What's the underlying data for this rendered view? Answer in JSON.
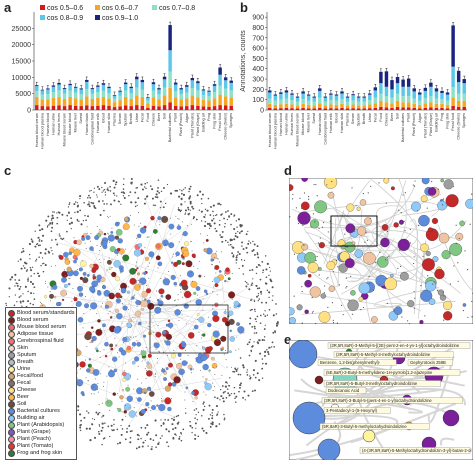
{
  "panels": {
    "a": {
      "letter": "a",
      "chart_data": {
        "type": "bar",
        "stacked": true,
        "yticks": [
          0,
          5000,
          10000,
          15000,
          20000,
          25000
        ],
        "ylim": [
          0,
          30000
        ],
        "legend": [
          "cos 0.5–0.6",
          "cos 0.6–0.7",
          "cos 0.7–0.8",
          "cos 0.8–0.9",
          "cos 0.9–1.0"
        ],
        "legend_colors": [
          "#d7191c",
          "#f5a623",
          "#8fe0c8",
          "#5bc8e8",
          "#1a237e"
        ],
        "categories": [
          "Human blood serum",
          "Human blood plasma",
          "Human blood",
          "Human urine",
          "Human feces",
          "Mouse blood serum",
          "Mouse blood",
          "Mouse liver",
          "Sweat",
          "Human brain",
          "Cerebrospinal fluid",
          "Human milk",
          "Blood",
          "Human skin",
          "Plasma",
          "Serum",
          "Sputum",
          "Breath",
          "Urine",
          "Fecal",
          "Food",
          "Cheese",
          "Beer",
          "Soil",
          "Bacterial cultures",
          "Plant",
          "Plant (Peach)",
          "Algae",
          "Plant (Tomato)",
          "Plant (Grape)",
          "Building air",
          "Frog",
          "Frog skin",
          "Fecal food",
          "Cheese (Swiss)",
          "Sponges"
        ],
        "series": [
          {
            "values": [
              1500,
              1200,
              1100,
              1300,
              1400,
              1200,
              1500,
              1300,
              1200,
              1400,
              1200,
              1300,
              1500,
              1300,
              900,
              1100,
              1400,
              1200,
              1500,
              1300,
              700,
              1300,
              1100,
              1500,
              2300,
              1300,
              1100,
              1200,
              1500,
              1300,
              1100,
              1000,
              1200,
              1500,
              1400,
              1300
            ]
          },
          {
            "values": [
              2500,
              2000,
              2200,
              2400,
              2600,
              2200,
              2500,
              2300,
              2100,
              2800,
              2200,
              2400,
              2500,
              2200,
              1500,
              1900,
              2600,
              2200,
              3000,
              2700,
              1300,
              2600,
              2100,
              3000,
              4500,
              2500,
              2100,
              2300,
              2900,
              2600,
              2000,
              1900,
              2400,
              3200,
              2800,
              2600
            ]
          },
          {
            "values": [
              1800,
              1500,
              1600,
              1800,
              2000,
              1600,
              1900,
              1700,
              1600,
              2200,
              1600,
              1800,
              1900,
              1700,
              1100,
              1400,
              2000,
              1700,
              2400,
              2200,
              900,
              2000,
              1600,
              2400,
              5000,
              2000,
              1600,
              1800,
              2300,
              2100,
              1500,
              1400,
              1900,
              2800,
              2300,
              2100
            ]
          },
          {
            "values": [
              1500,
              1300,
              1400,
              1600,
              1800,
              1400,
              1700,
              1500,
              1400,
              2200,
              1400,
              1600,
              1800,
              1500,
              900,
              1200,
              1900,
              1600,
              2500,
              2300,
              800,
              2000,
              1500,
              2500,
              6500,
              2000,
              1500,
              1800,
              2400,
              2200,
              1400,
              1300,
              1900,
              3300,
              2600,
              2300
            ]
          },
          {
            "values": [
              300,
              200,
              300,
              400,
              500,
              300,
              400,
              300,
              300,
              600,
              300,
              400,
              500,
              400,
              200,
              300,
              500,
              400,
              800,
              700,
              200,
              600,
              400,
              800,
              7700,
              600,
              400,
              500,
              700,
              600,
              300,
              300,
              500,
              2200,
              900,
              700
            ]
          }
        ]
      }
    },
    "b": {
      "letter": "b",
      "chart_data": {
        "type": "bar",
        "stacked": true,
        "ylabel": "Annotations, counts",
        "yticks": [
          0,
          100,
          200,
          300,
          400,
          500,
          600,
          700,
          800,
          900
        ],
        "ylim": [
          0,
          950
        ],
        "categories": [
          "Human blood serum",
          "Human blood plasma",
          "Human blood",
          "Human urine",
          "Human feces",
          "Mouse blood serum",
          "Mouse blood",
          "Mouse liver",
          "Sweat",
          "Human brain",
          "Cerebrospinal fluid",
          "Human milk",
          "Blood",
          "Human skin",
          "Plasma",
          "Serum",
          "Sputum",
          "Breath",
          "Urine",
          "Fecal",
          "Food",
          "Cheese",
          "Beer",
          "Soil",
          "Bacterial cultures",
          "Plant",
          "Plant (Peach)",
          "Algae",
          "Plant (Tomato)",
          "Plant (Grape)",
          "Building air",
          "Frog",
          "Frog skin",
          "Fecal food",
          "Cheese (Swiss)",
          "Sponges"
        ],
        "series": [
          {
            "values": [
              20,
              15,
              18,
              20,
              18,
              15,
              20,
              15,
              15,
              20,
              15,
              18,
              15,
              20,
              15,
              18,
              15,
              15,
              18,
              20,
              30,
              25,
              20,
              30,
              25,
              25,
              20,
              15,
              20,
              25,
              20,
              20,
              15,
              40,
              30,
              30
            ]
          },
          {
            "values": [
              40,
              35,
              38,
              40,
              36,
              30,
              40,
              35,
              30,
              45,
              30,
              36,
              35,
              40,
              30,
              35,
              30,
              30,
              36,
              45,
              60,
              50,
              45,
              60,
              50,
              50,
              40,
              35,
              45,
              50,
              40,
              40,
              35,
              80,
              60,
              60
            ]
          },
          {
            "values": [
              50,
              40,
              45,
              50,
              42,
              35,
              45,
              40,
              35,
              55,
              35,
              42,
              40,
              45,
              35,
              40,
              35,
              35,
              42,
              55,
              70,
              60,
              55,
              70,
              60,
              60,
              50,
              40,
              50,
              60,
              50,
              45,
              40,
              100,
              70,
              70
            ]
          },
          {
            "values": [
              60,
              50,
              55,
              60,
              52,
              40,
              55,
              50,
              40,
              65,
              40,
              52,
              50,
              55,
              40,
              50,
              40,
              40,
              52,
              70,
              100,
              90,
              80,
              100,
              90,
              90,
              70,
              60,
              70,
              90,
              70,
              60,
              60,
              200,
              110,
              100
            ]
          },
          {
            "values": [
              20,
              10,
              15,
              20,
              12,
              10,
              20,
              10,
              10,
              25,
              10,
              12,
              10,
              20,
              10,
              10,
              10,
              10,
              12,
              30,
              110,
              150,
              90,
              60,
              70,
              80,
              30,
              20,
              30,
              40,
              30,
              20,
              20,
              400,
              110,
              40
            ]
          }
        ]
      }
    },
    "c": {
      "letter": "c",
      "legend": [
        {
          "label": "Blood serum/standards",
          "color": "#c62828"
        },
        {
          "label": "Blood serum",
          "color": "#7b1f1f"
        },
        {
          "label": "Mouse blood serum",
          "color": "#e57373"
        },
        {
          "label": "Adipose tissue",
          "color": "#f0c4a0"
        },
        {
          "label": "Cerebrospinal fluid",
          "color": "#ff6b6b"
        },
        {
          "label": "Skin",
          "color": "#f4d6d6"
        },
        {
          "label": "Sputum",
          "color": "#9e9e9e"
        },
        {
          "label": "Breath",
          "color": "#b0bec5"
        },
        {
          "label": "Urine",
          "color": "#fff59d"
        },
        {
          "label": "Fecal/food",
          "color": "#d7a86e"
        },
        {
          "label": "Fecal",
          "color": "#8d6e63"
        },
        {
          "label": "Cheese",
          "color": "#ffe082"
        },
        {
          "label": "Beer",
          "color": "#ffb74d"
        },
        {
          "label": "Soil",
          "color": "#6d4c41"
        },
        {
          "label": "Bacterial cultures",
          "color": "#5e8cdc"
        },
        {
          "label": "Building air",
          "color": "#90caf9"
        },
        {
          "label": "Plant (Arabidopsis)",
          "color": "#81c784"
        },
        {
          "label": "Plant (Grape)",
          "color": "#7e57c2"
        },
        {
          "label": "Plant (Peach)",
          "color": "#f48fb1"
        },
        {
          "label": "Plant (Tomato)",
          "color": "#e53935"
        },
        {
          "label": "Frog and frog skin",
          "color": "#2e7d32"
        }
      ]
    },
    "d": {
      "letter": "d"
    },
    "e": {
      "letter": "e",
      "labels": [
        "(3R,5R,8aR)-3-Methyl-5-[(2E)-pent-2-en-4-yn-1-yl]octahydroindolizine",
        "(3R,5R,8aR)-5-Methyl-3-methyloctahydroindolizine",
        "Benzene, 1,2-bis(phenylmethyl)-",
        "Gephyrotoxin 259B",
        "(5E,8aR)-3-Butyl-5-methylidene-1H-pyrrolo[1,2-a]azepine",
        "(3R,5R,8aR)-5-Butyl-3-methyloctahydroindolizine",
        "Dodecanoic Acid",
        "(3R,5R,8aR)-3-Butyl-5-(pent-4-en-1-yl)octahydroindolizine",
        "3-Pentadecyl-1-(5-Hexynyl)",
        "(5R,8aR)-3-Butyl-5-methyloctahydroindolizine",
        "(4-(3R,5R,8aR)-5-Methyloctahydroindolizin-3-yl)-butan-2-ol"
      ]
    }
  }
}
